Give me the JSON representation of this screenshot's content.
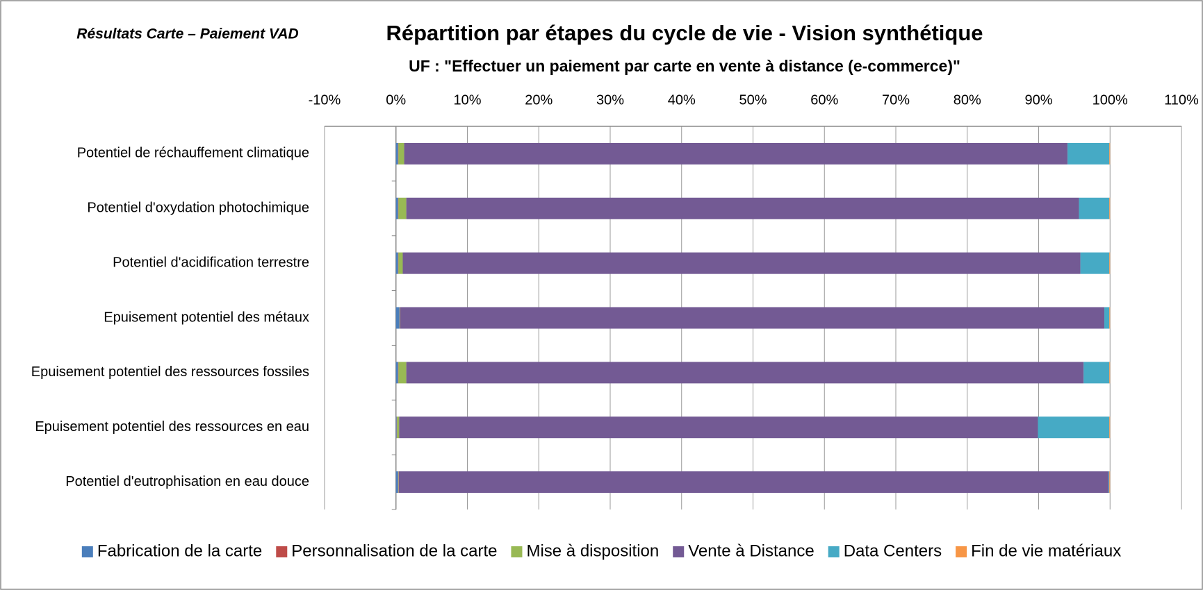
{
  "chart_data": {
    "type": "stacked_barh",
    "corner_label": "Résultats Carte – Paiement VAD",
    "title": "Répartition par étapes du cycle de vie - Vision synthétique",
    "subtitle": "UF :  \"Effectuer un paiement par carte en vente à distance (e-commerce)\"",
    "categories": [
      "Potentiel de réchauffement climatique",
      "Potentiel d'oxydation photochimique",
      "Potentiel d'acidification terrestre",
      "Epuisement potentiel des métaux",
      "Epuisement potentiel des ressources fossiles",
      "Epuisement potentiel des ressources en eau",
      "Potentiel d'eutrophisation en eau douce"
    ],
    "series": [
      {
        "name": "Fabrication de la carte",
        "color": "#4a7ebb",
        "values": [
          0.3,
          0.3,
          0.3,
          0.5,
          0.3,
          0.1,
          0.3
        ]
      },
      {
        "name": "Personnalisation de la carte",
        "color": "#be4b48",
        "values": [
          0.05,
          0.05,
          0.05,
          0.05,
          0.05,
          0.05,
          0.05
        ]
      },
      {
        "name": "Mise à disposition",
        "color": "#98b954",
        "values": [
          0.8,
          1.1,
          0.6,
          0.05,
          1.1,
          0.3,
          0.05
        ]
      },
      {
        "name": "Vente à Distance",
        "color": "#735a94",
        "values": [
          92.9,
          94.2,
          94.9,
          98.6,
          94.85,
          89.45,
          99.4
        ]
      },
      {
        "name": "Data Centers",
        "color": "#46aac5",
        "values": [
          5.85,
          4.25,
          4.05,
          0.7,
          3.6,
          10.0,
          0.1
        ]
      },
      {
        "name": "Fin de vie matériaux",
        "color": "#f79646",
        "values": [
          0.1,
          0.1,
          0.1,
          0.1,
          0.1,
          0.1,
          0.1
        ]
      }
    ],
    "xlim": [
      -10,
      110
    ],
    "xticks": [
      {
        "value": -10,
        "label": "-10%"
      },
      {
        "value": 0,
        "label": "0%"
      },
      {
        "value": 10,
        "label": "10%"
      },
      {
        "value": 20,
        "label": "20%"
      },
      {
        "value": 30,
        "label": "30%"
      },
      {
        "value": 40,
        "label": "40%"
      },
      {
        "value": 50,
        "label": "50%"
      },
      {
        "value": 60,
        "label": "60%"
      },
      {
        "value": 70,
        "label": "70%"
      },
      {
        "value": 80,
        "label": "80%"
      },
      {
        "value": 90,
        "label": "90%"
      },
      {
        "value": 100,
        "label": "100%"
      },
      {
        "value": 110,
        "label": "110%"
      }
    ],
    "grid": true,
    "legend": "bottom"
  }
}
